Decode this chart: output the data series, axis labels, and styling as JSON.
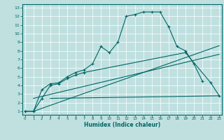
{
  "xlabel": "Humidex (Indice chaleur)",
  "bg_color": "#c0e0e0",
  "line_color": "#006666",
  "curve1_x": [
    0,
    1,
    2,
    3,
    4,
    5,
    6,
    7,
    8,
    9,
    10,
    11,
    12,
    13,
    14,
    15,
    16,
    17,
    18,
    19,
    20,
    21
  ],
  "curve1_y": [
    1.0,
    1.0,
    3.5,
    4.2,
    4.3,
    5.0,
    5.5,
    5.8,
    6.5,
    8.5,
    7.8,
    9.0,
    12.0,
    12.2,
    12.5,
    12.5,
    12.5,
    10.8,
    8.5,
    8.0,
    6.5,
    4.5
  ],
  "curve2_x": [
    0,
    1,
    2,
    3,
    4,
    5,
    6,
    7,
    19,
    22,
    23
  ],
  "curve2_y": [
    1.0,
    1.0,
    2.5,
    4.0,
    4.2,
    4.8,
    5.2,
    5.5,
    7.8,
    4.3,
    2.8
  ],
  "line1_x": [
    1,
    23
  ],
  "line1_y": [
    1.0,
    8.6
  ],
  "line2_x": [
    1,
    23
  ],
  "line2_y": [
    2.5,
    7.6
  ],
  "hline_x": [
    3,
    23
  ],
  "hline_y": [
    2.5,
    2.8
  ],
  "xlim": [
    -0.3,
    23.3
  ],
  "ylim": [
    0.6,
    13.4
  ],
  "xticks": [
    0,
    1,
    2,
    3,
    4,
    5,
    6,
    7,
    8,
    9,
    10,
    11,
    12,
    13,
    14,
    15,
    16,
    17,
    18,
    19,
    20,
    21,
    22,
    23
  ],
  "yticks": [
    1,
    2,
    3,
    4,
    5,
    6,
    7,
    8,
    9,
    10,
    11,
    12,
    13
  ]
}
